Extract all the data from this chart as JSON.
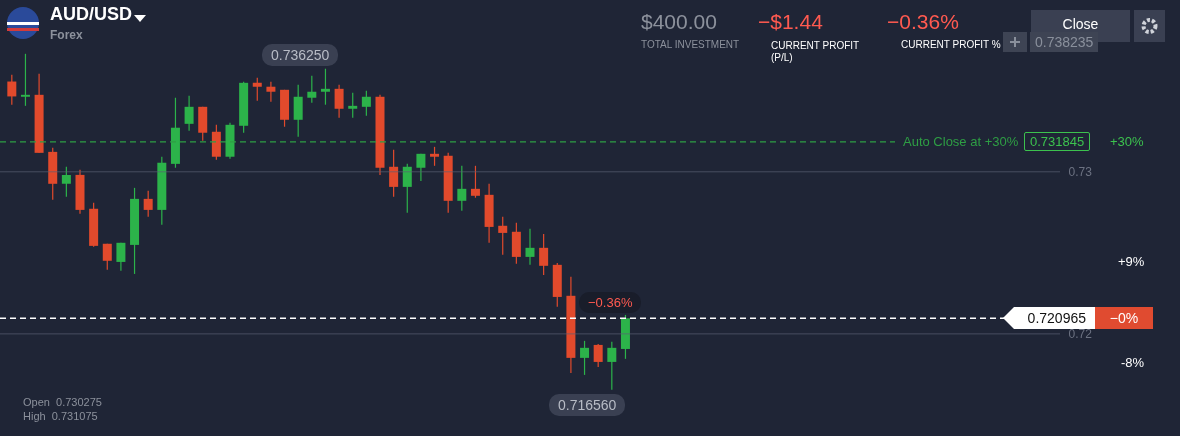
{
  "chart_data": {
    "type": "candlestick",
    "title": "AUD/USD",
    "subtitle": "Forex",
    "categories": [
      null,
      null,
      null,
      null,
      null,
      null,
      null,
      null,
      null,
      null,
      null,
      null,
      null,
      null,
      null,
      null,
      null,
      null,
      null,
      null,
      null,
      null,
      null,
      null,
      null,
      null,
      null,
      null,
      null,
      null,
      null,
      null,
      null,
      null,
      null,
      null,
      null,
      null,
      null,
      null,
      null,
      null,
      null,
      null,
      null,
      null,
      null,
      null,
      null,
      null,
      null,
      null,
      null,
      null,
      null,
      null,
      null,
      null,
      null,
      null,
      null,
      null,
      null,
      null,
      null,
      null,
      null,
      null,
      null,
      null,
      null,
      null,
      null,
      null,
      null,
      null,
      null
    ],
    "ohlc": [
      [
        0.73557,
        0.73599,
        0.73414,
        0.73465
      ],
      [
        0.73463,
        0.73728,
        0.73407,
        0.73475
      ],
      [
        0.73475,
        0.73605,
        0.73117,
        0.73117
      ],
      [
        0.73123,
        0.73148,
        0.72827,
        0.72926
      ],
      [
        0.72926,
        0.73031,
        0.72846,
        0.72981
      ],
      [
        0.72981,
        0.73012,
        0.72741,
        0.72765
      ],
      [
        0.72772,
        0.72809,
        0.72537,
        0.72543
      ],
      [
        0.72556,
        0.72556,
        0.72395,
        0.72451
      ],
      [
        0.72444,
        0.72562,
        0.72389,
        0.72562
      ],
      [
        0.72549,
        0.72901,
        0.7237,
        0.72833
      ],
      [
        0.72833,
        0.72883,
        0.72722,
        0.72765
      ],
      [
        0.72765,
        0.73093,
        0.72673,
        0.73056
      ],
      [
        0.73049,
        0.73457,
        0.73025,
        0.73272
      ],
      [
        0.73296,
        0.73469,
        0.73253,
        0.73401
      ],
      [
        0.73401,
        0.73401,
        0.73191,
        0.73241
      ],
      [
        0.73247,
        0.7329,
        0.73074,
        0.73093
      ],
      [
        0.73093,
        0.73302,
        0.7308,
        0.7329
      ],
      [
        0.73284,
        0.73556,
        0.73241,
        0.73549
      ],
      [
        0.73549,
        0.7358,
        0.73438,
        0.73525
      ],
      [
        0.73525,
        0.73556,
        0.73432,
        0.73494
      ],
      [
        0.73506,
        0.73506,
        0.73278,
        0.73321
      ],
      [
        0.73321,
        0.73537,
        0.73216,
        0.73463
      ],
      [
        0.73457,
        0.73593,
        0.73426,
        0.73494
      ],
      [
        0.73494,
        0.73636,
        0.73414,
        0.73512
      ],
      [
        0.73512,
        0.73537,
        0.73333,
        0.73389
      ],
      [
        0.73389,
        0.73488,
        0.73333,
        0.73407
      ],
      [
        0.73401,
        0.735,
        0.73346,
        0.73463
      ],
      [
        0.73463,
        0.73475,
        0.72981,
        0.73025
      ],
      [
        0.73031,
        0.73136,
        0.72846,
        0.72907
      ],
      [
        0.72907,
        0.73049,
        0.72747,
        0.73031
      ],
      [
        0.73025,
        0.73111,
        0.72944,
        0.73111
      ],
      [
        0.73111,
        0.73154,
        0.73037,
        0.73093
      ],
      [
        0.73099,
        0.73117,
        0.72747,
        0.72821
      ],
      [
        0.72821,
        0.73037,
        0.72759,
        0.72895
      ],
      [
        0.72895,
        0.73037,
        0.7284,
        0.72852
      ],
      [
        0.72858,
        0.72926,
        0.72562,
        0.7266
      ],
      [
        0.72667,
        0.72722,
        0.72488,
        0.72623
      ],
      [
        0.7263,
        0.72685,
        0.72432,
        0.72475
      ],
      [
        0.72475,
        0.72648,
        0.72426,
        0.72531
      ],
      [
        0.72531,
        0.72617,
        0.72364,
        0.7242
      ],
      [
        0.72426,
        0.72438,
        0.72167,
        0.72228
      ],
      [
        0.72235,
        0.72352,
        0.71759,
        0.71852
      ],
      [
        0.71852,
        0.71957,
        0.71747,
        0.71914
      ],
      [
        0.71932,
        0.71938,
        0.71796,
        0.71827
      ],
      [
        0.71827,
        0.71951,
        0.71656,
        0.71914
      ],
      [
        0.71907,
        0.72117,
        0.71846,
        0.720965
      ],
      null,
      null,
      null,
      null,
      null,
      null,
      null,
      null,
      null,
      null,
      null,
      null,
      null,
      null,
      null,
      null,
      null,
      null,
      null,
      null,
      null,
      null,
      null,
      null,
      null,
      null,
      null,
      null,
      null,
      null,
      null
    ],
    "colors": [
      "#e24a2c",
      "#2cb34a",
      "#e24a2c",
      "#e24a2c",
      "#2cb34a",
      "#e24a2c",
      "#e24a2c",
      "#e24a2c",
      "#2cb34a",
      "#2cb34a",
      "#e24a2c",
      "#2cb34a",
      "#2cb34a",
      "#2cb34a",
      "#e24a2c",
      "#e24a2c",
      "#2cb34a",
      "#2cb34a",
      "#e24a2c",
      "#e24a2c",
      "#e24a2c",
      "#2cb34a",
      "#2cb34a",
      "#2cb34a",
      "#e24a2c",
      "#2cb34a",
      "#2cb34a",
      "#e24a2c",
      "#e24a2c",
      "#2cb34a",
      "#2cb34a",
      "#e24a2c",
      "#e24a2c",
      "#2cb34a",
      "#e24a2c",
      "#e24a2c",
      "#e24a2c",
      "#e24a2c",
      "#2cb34a",
      "#e24a2c",
      "#e24a2c",
      "#e24a2c",
      "#2cb34a",
      "#e24a2c",
      "#2cb34a",
      "#2cb34a",
      null,
      null,
      null,
      null,
      null,
      null,
      null,
      null,
      null,
      null,
      null,
      null,
      null,
      null,
      null,
      null,
      null,
      null,
      null,
      null,
      null,
      null,
      null,
      null,
      null,
      null,
      null,
      null,
      null,
      null,
      null
    ],
    "ylim": [
      0.7137,
      0.7406
    ],
    "yticks": [
      0.72,
      0.73
    ],
    "grid": "y",
    "tick_labels": "y",
    "ref_lines": [
      {
        "axis": "y",
        "value": 0.731845,
        "label": "Auto Close at +30%",
        "color": "#2e9e44",
        "line_style": "dashed"
      },
      {
        "axis": "y",
        "value": 0.720965,
        "label": "0.720965",
        "color": "#ffffff",
        "line_style": "dashed"
      }
    ],
    "annotations": [
      "0.736250",
      "0.716560",
      {
        "text": "−0.36%",
        "y": 0.720965
      },
      "0.738235",
      "0.731845",
      "+30%",
      "+9%",
      "−0%",
      "-8%",
      "$400.00",
      "TOTAL INVESTMENT",
      "−$1.44",
      "CURRENT PROFIT (P/L)",
      "−0.36%",
      "CURRENT PROFIT %",
      "Close",
      "Open  0.730275",
      "High  0.731075"
    ]
  }
}
